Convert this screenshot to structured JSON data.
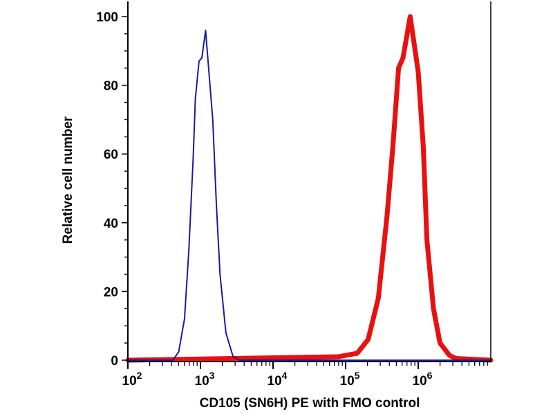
{
  "chart_data": {
    "type": "line",
    "title": "",
    "xlabel": "CD105 (SN6H) PE with FMO control",
    "ylabel": "Relative cell number",
    "xscale": "log",
    "xlim": [
      100,
      10000000
    ],
    "ylim": [
      0,
      100
    ],
    "grid": false,
    "legend": "none",
    "x_ticks": [
      {
        "value": 100,
        "base": "10",
        "exp": "2"
      },
      {
        "value": 1000,
        "base": "10",
        "exp": "3"
      },
      {
        "value": 10000,
        "base": "10",
        "exp": "4"
      },
      {
        "value": 100000,
        "base": "10",
        "exp": "5"
      },
      {
        "value": 1000000,
        "base": "10",
        "exp": "6"
      }
    ],
    "y_ticks": [
      "0",
      "20",
      "40",
      "60",
      "80",
      "100"
    ],
    "series": [
      {
        "color": "#1a1a9c",
        "line": "thin",
        "x": [
          100,
          417,
          501,
          603,
          692,
          794,
          851,
          955,
          1047,
          1175,
          1318,
          1479,
          1660,
          1862,
          2239,
          2818,
          3467,
          10000000
        ],
        "y": [
          0,
          0,
          2.4,
          12,
          32,
          59,
          76,
          87,
          88,
          96,
          83,
          70,
          45,
          25,
          8,
          1,
          0,
          0
        ]
      },
      {
        "color": "#e8110f",
        "line": "thick",
        "x": [
          100,
          79400,
          144500,
          204000,
          282000,
          372000,
          447000,
          537000,
          617000,
          776000,
          1000000,
          1175000,
          1318000,
          1622000,
          1995000,
          2692000,
          3311000,
          10000000
        ],
        "y": [
          0,
          1,
          2,
          6,
          18,
          42,
          62,
          85,
          88,
          100,
          84,
          62,
          35,
          15,
          5,
          1.4,
          0.5,
          0
        ]
      }
    ]
  }
}
